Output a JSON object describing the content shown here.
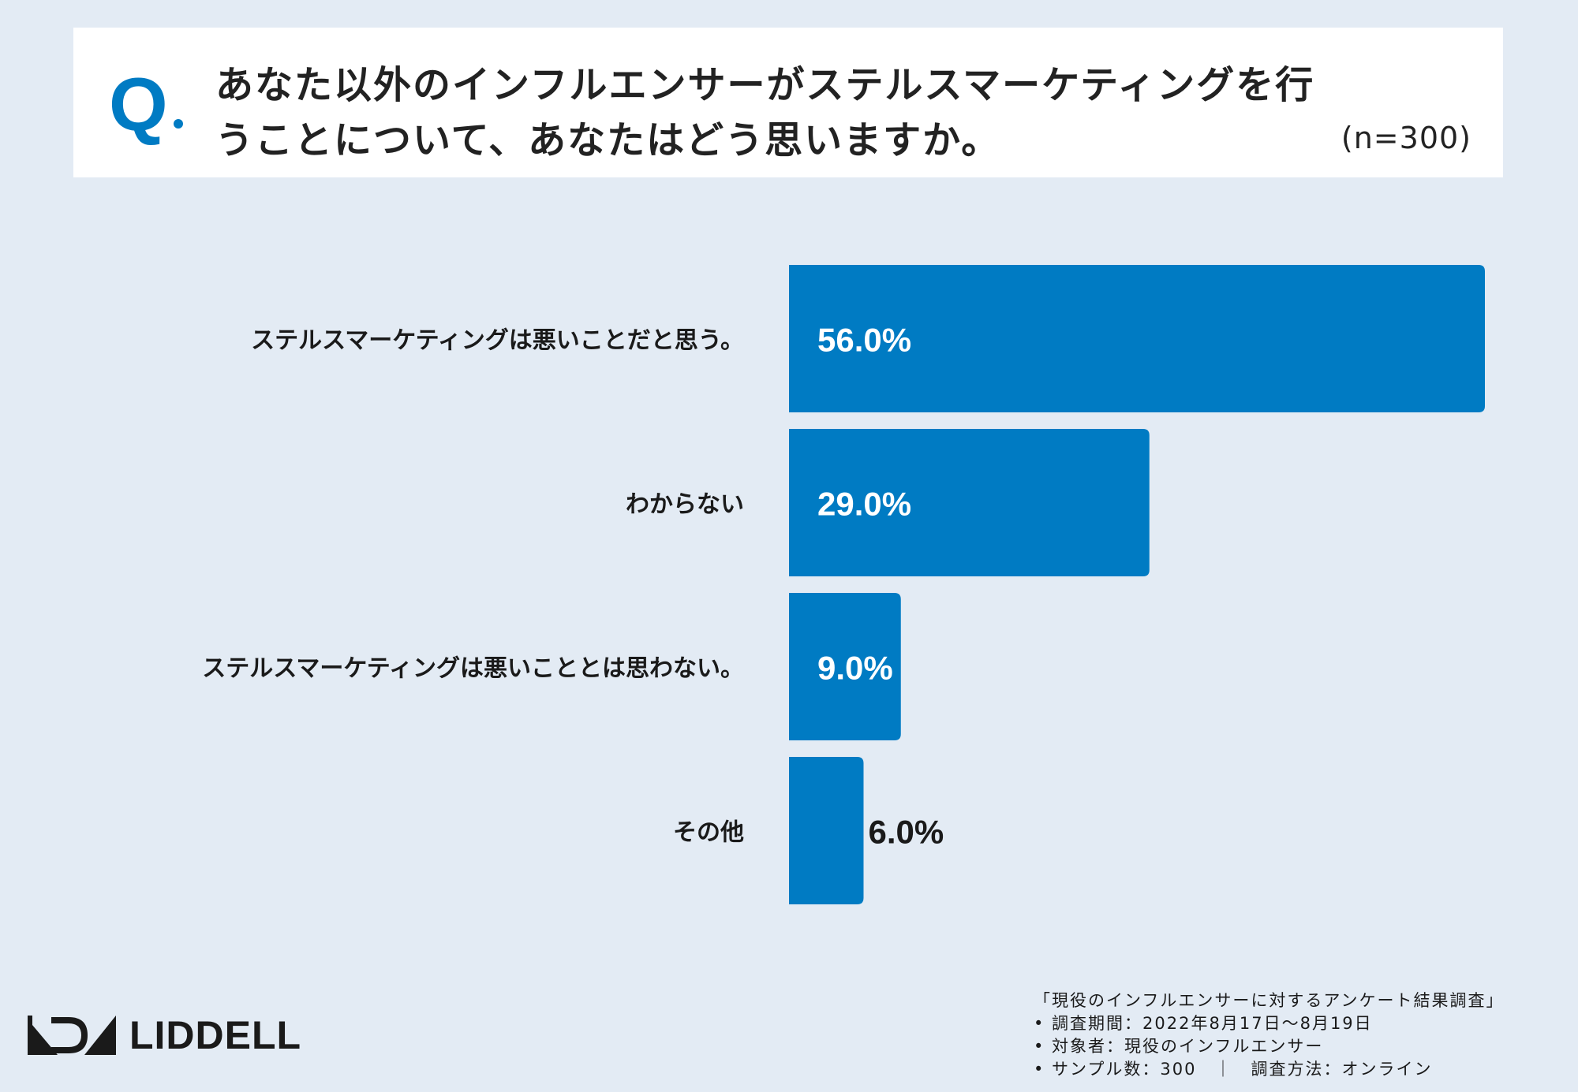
{
  "question": {
    "mark": "Q",
    "text": "あなた以外のインフルエンサーがステルスマーケティングを行うことについて、あなたはどう思いますか。",
    "n": "(n=300)"
  },
  "chart_data": {
    "type": "bar",
    "orientation": "horizontal",
    "categories": [
      "ステルスマーケティングは悪いことだと思う。",
      "わからない",
      "ステルスマーケティングは悪いこととは思わない。",
      "その他"
    ],
    "values": [
      56.0,
      29.0,
      9.0,
      6.0
    ],
    "value_labels": [
      "56.0%",
      "29.0%",
      "9.0%",
      "6.0%"
    ],
    "unit": "%",
    "xlim": [
      0,
      56.0
    ],
    "grid": false,
    "colors": {
      "bar": "#007bc3",
      "label_inside": "#ffffff",
      "label_outside": "#1a1a1a"
    }
  },
  "footer": {
    "brand": "LIDDELL",
    "survey_title": "「現役のインフルエンサーに対するアンケート結果調査」",
    "period": "• 調査期間：2022年8月17日〜8月19日",
    "target": "• 対象者：現役のインフルエンサー",
    "sample_method": "• サンプル数：300　｜　調査方法：オンライン"
  }
}
